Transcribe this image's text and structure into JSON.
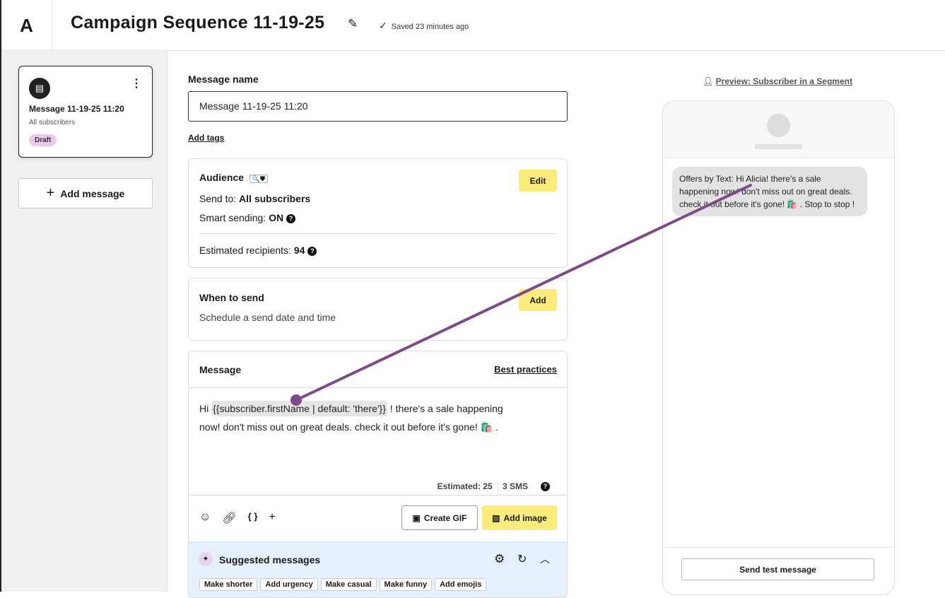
{
  "header": {
    "logo": "A",
    "title": "Campaign Sequence 11-19-25",
    "saved": "Saved 23 minutes ago"
  },
  "sidebar": {
    "card": {
      "title": "Message 11-19-25 11:20",
      "subtitle": "All subscribers",
      "badge": "Draft"
    },
    "add_message": "Add message"
  },
  "form": {
    "name_label": "Message name",
    "name_value": "Message 11-19-25 11:20",
    "add_tags": "Add tags",
    "audience": {
      "title": "Audience",
      "edit": "Edit",
      "send_to_label": "Send to:",
      "send_to_value": "All subscribers",
      "smart_label": "Smart sending:",
      "smart_value": "ON",
      "est_label": "Estimated recipients:",
      "est_value": "94"
    },
    "when": {
      "title": "When to send",
      "subtitle": "Schedule a send date and time",
      "add": "Add"
    },
    "message": {
      "title": "Message",
      "best_practices": "Best practices",
      "prefix": "Hi",
      "variable": "{{subscriber.firstName | default: 'there'}}",
      "body1": "! there's a sale happening",
      "body2": "now! don't miss out on great deals. check it out before it's gone! 🛍️ .",
      "estimated": "Estimated: 25",
      "sms": "3 SMS",
      "create_gif": "Create GIF",
      "add_image": "Add image"
    },
    "suggested": {
      "title": "Suggested messages",
      "chips": [
        "Make shorter",
        "Add urgency",
        "Make casual",
        "Make funny",
        "Add emojis"
      ]
    }
  },
  "preview": {
    "link": "Preview: Subscriber in a Segment",
    "bubble": "Offers by Text: Hi Alicia! there's a sale happening now! don't miss out on great deals. check it out before it's gone! 🛍️ . Stop to stop !",
    "send_test": "Send test message"
  },
  "colors": {
    "accent_yellow": "#fbec7c",
    "draft_badge": "#ebc9ec",
    "suggest_bg": "#e6f0fc",
    "annotation": "#7e4a8a"
  }
}
